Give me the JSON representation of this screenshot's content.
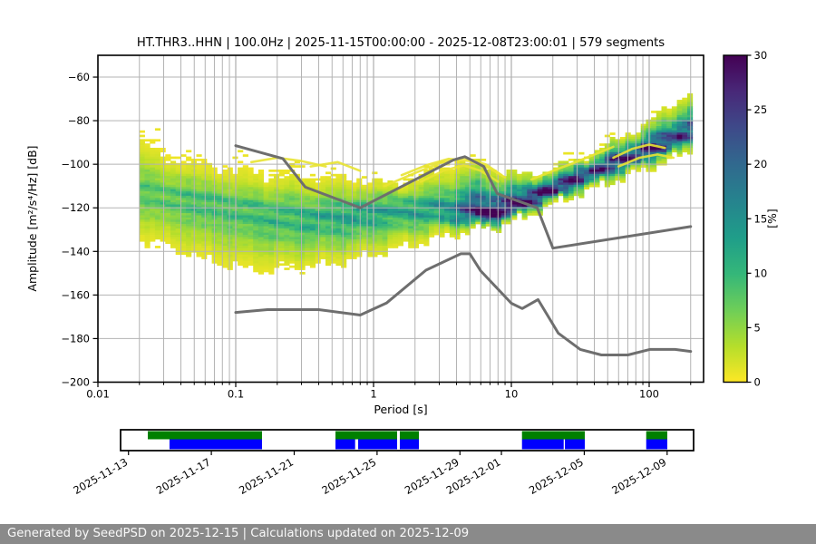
{
  "chart_data": {
    "type": "heatmap",
    "title": "HT.THR3..HHN | 100.0Hz | 2025-11-15T00:00:00 - 2025-12-08T23:00:01 | 579 segments",
    "xlabel": "Period [s]",
    "ylabel": "Amplitude [m²/s⁴/Hz] [dB]",
    "x_scale": "log",
    "xlim": [
      0.01,
      250
    ],
    "ylim": [
      -200,
      -50
    ],
    "xticks": [
      0.01,
      0.1,
      1,
      10,
      100
    ],
    "xtick_labels": [
      "0.01",
      "0.1",
      "1",
      "10",
      "100"
    ],
    "yticks": [
      -60,
      -80,
      -100,
      -120,
      -140,
      -160,
      -180,
      -200
    ],
    "grid": true,
    "grid_color": "#b3b3b3",
    "colorbar": {
      "label": "[%]",
      "ticks": [
        0,
        5,
        10,
        15,
        20,
        25,
        30
      ],
      "min": 0,
      "max": 30,
      "colormap": "viridis_r"
    },
    "psd_histogram": {
      "period_range_s": [
        0.02,
        198
      ],
      "db_bin_width": 1,
      "profile": [
        {
          "p": 0.02,
          "mode": -112.0,
          "up": -85,
          "low": -134,
          "peak": 8
        },
        {
          "p": 0.03,
          "mode": -114.0,
          "up": -93,
          "low": -138,
          "peak": 8
        },
        {
          "p": 0.05,
          "mode": -116.0,
          "up": -98,
          "low": -142,
          "peak": 9
        },
        {
          "p": 0.1,
          "mode": -120.0,
          "up": -101,
          "low": -147,
          "peak": 9
        },
        {
          "p": 0.2,
          "mode": -123.0,
          "up": -103,
          "low": -148,
          "peak": 10
        },
        {
          "p": 0.4,
          "mode": -124.0,
          "up": -105,
          "low": -146,
          "peak": 11
        },
        {
          "p": 0.8,
          "mode": -122.0,
          "up": -107,
          "low": -142,
          "peak": 13
        },
        {
          "p": 1.5,
          "mode": -120.0,
          "up": -108,
          "low": -138,
          "peak": 12
        },
        {
          "p": 2.5,
          "mode": -120.5,
          "up": -104,
          "low": -134,
          "peak": 13
        },
        {
          "p": 4,
          "mode": -122.0,
          "up": -99,
          "low": -131,
          "peak": 17
        },
        {
          "p": 6,
          "mode": -123.5,
          "up": -100,
          "low": -129,
          "peak": 30
        },
        {
          "p": 8,
          "mode": -123.0,
          "up": -103,
          "low": -128,
          "peak": 30
        },
        {
          "p": 12,
          "mode": -118.0,
          "up": -105,
          "low": -124,
          "peak": 30
        },
        {
          "p": 18,
          "mode": -112.5,
          "up": -103,
          "low": -119,
          "peak": 30
        },
        {
          "p": 30,
          "mode": -106.5,
          "up": -98,
          "low": -113,
          "peak": 28
        },
        {
          "p": 50,
          "mode": -100.5,
          "up": -91,
          "low": -108,
          "peak": 26
        },
        {
          "p": 80,
          "mode": -95.5,
          "up": -84,
          "low": -103,
          "peak": 26
        },
        {
          "p": 120,
          "mode": -91.0,
          "up": -77,
          "low": -99,
          "peak": 26
        },
        {
          "p": 198,
          "mode": -86.0,
          "up": -66,
          "low": -93,
          "peak": 24
        }
      ]
    },
    "outlier_streaks": [
      [
        [
          1.6,
          -105
        ],
        [
          2.4,
          -100.5
        ],
        [
          3.5,
          -97.5
        ],
        [
          5,
          -98.5
        ],
        [
          7,
          -102
        ],
        [
          9,
          -106
        ]
      ],
      [
        [
          2.2,
          -108
        ],
        [
          3.2,
          -103
        ],
        [
          4.5,
          -100.5
        ],
        [
          6,
          -103
        ],
        [
          8,
          -108
        ]
      ],
      [
        [
          1.2,
          -110
        ],
        [
          2,
          -104
        ],
        [
          3,
          -99.5
        ],
        [
          4.5,
          -97
        ],
        [
          6.5,
          -100
        ],
        [
          8.5,
          -105
        ]
      ],
      [
        [
          0.13,
          -99
        ],
        [
          0.2,
          -97
        ],
        [
          0.3,
          -98.5
        ],
        [
          0.45,
          -101
        ]
      ],
      [
        [
          0.35,
          -101
        ],
        [
          0.55,
          -99
        ],
        [
          0.8,
          -103
        ]
      ],
      [
        [
          55,
          -97
        ],
        [
          75,
          -93
        ],
        [
          100,
          -91
        ],
        [
          130,
          -92.5
        ]
      ],
      [
        [
          60,
          -101
        ],
        [
          85,
          -97
        ],
        [
          115,
          -95.5
        ],
        [
          150,
          -97
        ]
      ],
      [
        [
          14,
          -107
        ],
        [
          20,
          -103
        ],
        [
          28,
          -99.5
        ],
        [
          40,
          -95.5
        ],
        [
          55,
          -92
        ]
      ]
    ],
    "streak_color": "#e8e332",
    "noise_models": {
      "color": "#6e6e6e",
      "high_noise_model": [
        [
          0.1,
          -91.5
        ],
        [
          0.22,
          -97.4
        ],
        [
          0.32,
          -110.5
        ],
        [
          0.8,
          -120.0
        ],
        [
          3.8,
          -98.0
        ],
        [
          4.6,
          -96.5
        ],
        [
          6.3,
          -101.0
        ],
        [
          7.9,
          -113.5
        ],
        [
          15.4,
          -120.0
        ],
        [
          20.0,
          -138.5
        ],
        [
          200,
          -128.6
        ]
      ],
      "low_noise_model": [
        [
          0.1,
          -168.0
        ],
        [
          0.17,
          -166.7
        ],
        [
          0.4,
          -166.7
        ],
        [
          0.8,
          -169.2
        ],
        [
          1.24,
          -163.7
        ],
        [
          2.4,
          -148.6
        ],
        [
          4.3,
          -141.1
        ],
        [
          5.0,
          -141.1
        ],
        [
          6.0,
          -149.0
        ],
        [
          10.0,
          -163.8
        ],
        [
          12.0,
          -166.2
        ],
        [
          15.6,
          -162.1
        ],
        [
          21.9,
          -177.5
        ],
        [
          31.6,
          -185.0
        ],
        [
          45.0,
          -187.5
        ],
        [
          70.0,
          -187.5
        ],
        [
          101.0,
          -185.0
        ],
        [
          154.0,
          -185.0
        ],
        [
          200,
          -185.9
        ]
      ]
    },
    "availability": {
      "tick_labels": [
        "2025-11-13",
        "2025-11-17",
        "2025-11-21",
        "2025-11-25",
        "2025-11-29",
        "2025-12-01",
        "2025-12-05",
        "2025-12-09"
      ],
      "tick_positions": [
        0.0138,
        0.1584,
        0.303,
        0.4476,
        0.5922,
        0.6646,
        0.8092,
        0.9538
      ],
      "green_color": "#008000",
      "blue_color": "#0000ff",
      "green_segments": [
        [
          0.0475,
          0.2468
        ],
        [
          0.375,
          0.4826
        ],
        [
          0.4873,
          0.5206
        ],
        [
          0.7005,
          0.8101
        ],
        [
          0.9173,
          0.9541
        ]
      ],
      "blue_segments": [
        [
          0.0854,
          0.2468
        ],
        [
          0.375,
          0.4093
        ],
        [
          0.4146,
          0.4826
        ],
        [
          0.4873,
          0.5206
        ],
        [
          0.7005,
          0.7733
        ],
        [
          0.7754,
          0.8101
        ],
        [
          0.9173,
          0.9541
        ]
      ]
    }
  },
  "footer": {
    "text": "Generated by SeedPSD on 2025-12-15 | Calculations updated on 2025-12-09"
  }
}
